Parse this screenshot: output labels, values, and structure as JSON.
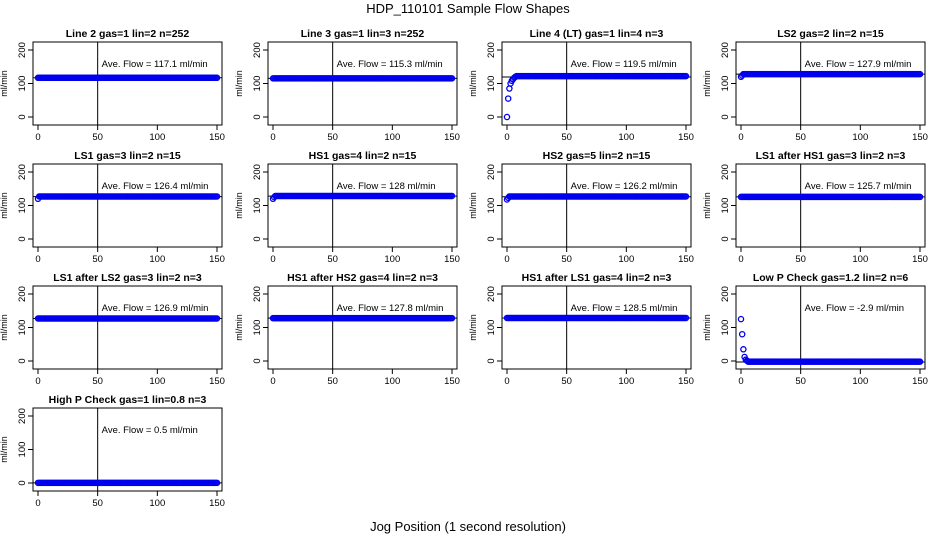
{
  "figure": {
    "title": "HDP_110101  Sample Flow Shapes",
    "xlabel": "Jog Position (1 second resolution)"
  },
  "chart_data": [
    {
      "type": "scatter",
      "title": "Line 2 gas=1 lin=2 n=252",
      "ylabel": "ml/min",
      "xlim": [
        0,
        150
      ],
      "ylim": [
        0,
        200
      ],
      "yticks": [
        0,
        100,
        200
      ],
      "xticks": [
        0,
        50,
        100,
        150
      ],
      "annotation": "Ave. Flow =  117.1  ml/min",
      "vline": 50,
      "hline": 117.1,
      "profile": {
        "kind": "flat",
        "level": 117.1
      }
    },
    {
      "type": "scatter",
      "title": "Line 3 gas=1 lin=3 n=252",
      "ylabel": "ml/min",
      "xlim": [
        0,
        150
      ],
      "ylim": [
        0,
        200
      ],
      "yticks": [
        0,
        100,
        200
      ],
      "xticks": [
        0,
        50,
        100,
        150
      ],
      "annotation": "Ave. Flow =  115.3  ml/min",
      "vline": 50,
      "hline": 115.3,
      "profile": {
        "kind": "flat",
        "level": 115.3
      }
    },
    {
      "type": "scatter",
      "title": "Line 4 (LT) gas=1 lin=4 n=3",
      "ylabel": "ml/min",
      "xlim": [
        0,
        150
      ],
      "ylim": [
        0,
        200
      ],
      "yticks": [
        0,
        100,
        200
      ],
      "xticks": [
        0,
        50,
        100,
        150
      ],
      "annotation": "Ave. Flow =  119.5  ml/min",
      "vline": 50,
      "hline": 119.5,
      "profile": {
        "kind": "ramp",
        "level": 122,
        "start": [
          0,
          55,
          85,
          100,
          108,
          113,
          117,
          120
        ]
      }
    },
    {
      "type": "scatter",
      "title": "LS2 gas=2 lin=2 n=15",
      "ylabel": "ml/min",
      "xlim": [
        0,
        150
      ],
      "ylim": [
        0,
        200
      ],
      "yticks": [
        0,
        100,
        200
      ],
      "xticks": [
        0,
        50,
        100,
        150
      ],
      "annotation": "Ave. Flow =  127.9  ml/min",
      "vline": 50,
      "hline": 127.9,
      "profile": {
        "kind": "flat",
        "level": 128,
        "start": [
          120,
          124
        ]
      }
    },
    {
      "type": "scatter",
      "title": "LS1 gas=3 lin=2 n=15",
      "ylabel": "ml/min",
      "xlim": [
        0,
        150
      ],
      "ylim": [
        0,
        200
      ],
      "yticks": [
        0,
        100,
        200
      ],
      "xticks": [
        0,
        50,
        100,
        150
      ],
      "annotation": "Ave. Flow =  126.4  ml/min",
      "vline": 50,
      "hline": 126.4,
      "profile": {
        "kind": "flat",
        "level": 127,
        "start": [
          120
        ]
      }
    },
    {
      "type": "scatter",
      "title": "HS1 gas=4 lin=2 n=15",
      "ylabel": "ml/min",
      "xlim": [
        0,
        150
      ],
      "ylim": [
        0,
        200
      ],
      "yticks": [
        0,
        100,
        200
      ],
      "xticks": [
        0,
        50,
        100,
        150
      ],
      "annotation": "Ave. Flow =  128  ml/min",
      "vline": 50,
      "hline": 128,
      "profile": {
        "kind": "flat",
        "level": 128.5,
        "start": [
          120,
          125
        ]
      }
    },
    {
      "type": "scatter",
      "title": "HS2 gas=5 lin=2 n=15",
      "ylabel": "ml/min",
      "xlim": [
        0,
        150
      ],
      "ylim": [
        0,
        200
      ],
      "yticks": [
        0,
        100,
        200
      ],
      "xticks": [
        0,
        50,
        100,
        150
      ],
      "annotation": "Ave. Flow =  126.2  ml/min",
      "vline": 50,
      "hline": 126.2,
      "profile": {
        "kind": "flat",
        "level": 127,
        "start": [
          118,
          123
        ]
      }
    },
    {
      "type": "scatter",
      "title": "LS1 after HS1 gas=3 lin=2 n=3",
      "ylabel": "ml/min",
      "xlim": [
        0,
        150
      ],
      "ylim": [
        0,
        200
      ],
      "yticks": [
        0,
        100,
        200
      ],
      "xticks": [
        0,
        50,
        100,
        150
      ],
      "annotation": "Ave. Flow =  125.7  ml/min",
      "vline": 50,
      "hline": 125.7,
      "profile": {
        "kind": "flat",
        "level": 125.7
      }
    },
    {
      "type": "scatter",
      "title": "LS1 after LS2 gas=3 lin=2 n=3",
      "ylabel": "ml/min",
      "xlim": [
        0,
        150
      ],
      "ylim": [
        0,
        200
      ],
      "yticks": [
        0,
        100,
        200
      ],
      "xticks": [
        0,
        50,
        100,
        150
      ],
      "annotation": "Ave. Flow =  126.9  ml/min",
      "vline": 50,
      "hline": 126.9,
      "profile": {
        "kind": "flat",
        "level": 126.9
      }
    },
    {
      "type": "scatter",
      "title": "HS1 after HS2 gas=4 lin=2 n=3",
      "ylabel": "ml/min",
      "xlim": [
        0,
        150
      ],
      "ylim": [
        0,
        200
      ],
      "yticks": [
        0,
        100,
        200
      ],
      "xticks": [
        0,
        50,
        100,
        150
      ],
      "annotation": "Ave. Flow =  127.8  ml/min",
      "vline": 50,
      "hline": 127.8,
      "profile": {
        "kind": "flat",
        "level": 127.8
      }
    },
    {
      "type": "scatter",
      "title": "HS1 after LS1 gas=4 lin=2 n=3",
      "ylabel": "ml/min",
      "xlim": [
        0,
        150
      ],
      "ylim": [
        0,
        200
      ],
      "yticks": [
        0,
        100,
        200
      ],
      "xticks": [
        0,
        50,
        100,
        150
      ],
      "annotation": "Ave. Flow =  128.5  ml/min",
      "vline": 50,
      "hline": 128.5,
      "profile": {
        "kind": "flat",
        "level": 128.5
      }
    },
    {
      "type": "scatter",
      "title": "Low P Check gas=1.2 lin=2 n=6",
      "ylabel": "ml/min",
      "xlim": [
        0,
        150
      ],
      "ylim": [
        0,
        200
      ],
      "yticks": [
        0,
        100,
        200
      ],
      "xticks": [
        0,
        50,
        100,
        150
      ],
      "annotation": "Ave. Flow =  -2.9  ml/min",
      "vline": 50,
      "hline": -2.9,
      "profile": {
        "kind": "drop",
        "level": -2,
        "start": [
          125,
          80,
          35,
          12,
          4,
          1
        ]
      }
    },
    {
      "type": "scatter",
      "title": "High P Check gas=1 lin=0.8 n=3",
      "ylabel": "ml/min",
      "xlim": [
        0,
        150
      ],
      "ylim": [
        0,
        200
      ],
      "yticks": [
        0,
        100,
        200
      ],
      "xticks": [
        0,
        50,
        100,
        150
      ],
      "annotation": "Ave. Flow =  0.5  ml/min",
      "vline": 50,
      "hline": 0.5,
      "profile": {
        "kind": "flat",
        "level": 0.5
      }
    }
  ]
}
